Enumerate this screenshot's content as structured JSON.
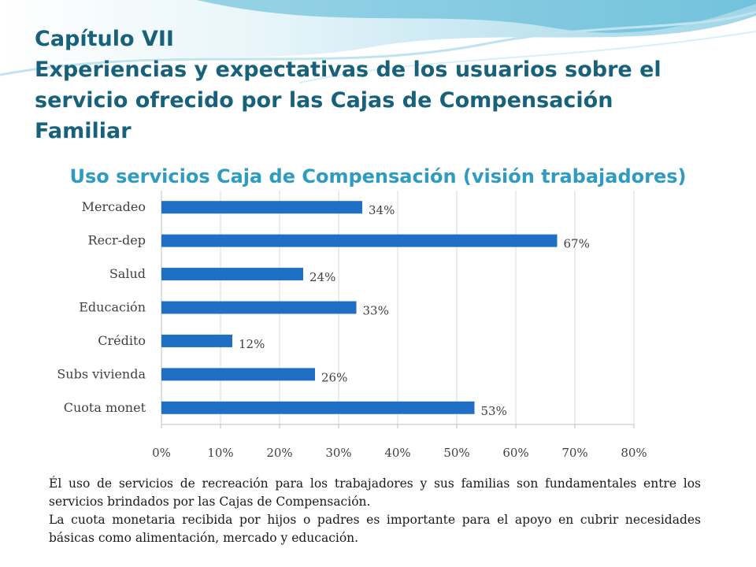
{
  "slide": {
    "chapter": "Capítulo VII",
    "title": "Experiencias y expectativas de los usuarios sobre el servicio ofrecido por las Cajas de Compensación Familiar"
  },
  "colors": {
    "title": "#17617a",
    "chart_title": "#2e9bc0",
    "bar": "#1f6fc5"
  },
  "chart_data": {
    "type": "bar",
    "orientation": "horizontal",
    "title": "Uso servicios Caja de Compensación (visión trabajadores)",
    "categories": [
      "Mercadeo",
      "Recr-dep",
      "Salud",
      "Educación",
      "Crédito",
      "Subs vivienda",
      "Cuota monet"
    ],
    "values": [
      34,
      67,
      24,
      33,
      12,
      26,
      53
    ],
    "value_labels": [
      "34%",
      "67%",
      "24%",
      "33%",
      "12%",
      "26%",
      "53%"
    ],
    "x_ticks": [
      "0%",
      "10%",
      "20%",
      "30%",
      "40%",
      "50%",
      "60%",
      "70%",
      "80%"
    ],
    "xlim": [
      0,
      80
    ],
    "grid": true,
    "legend": false
  },
  "paragraphs": [
    "Él uso de servicios de recreación para los trabajadores y sus familias son fundamentales entre los servicios brindados por las Cajas de Compensación.",
    "La cuota monetaria recibida por hijos o padres es importante para el apoyo en  cubrir necesidades básicas como alimentación,  mercado y educación."
  ]
}
